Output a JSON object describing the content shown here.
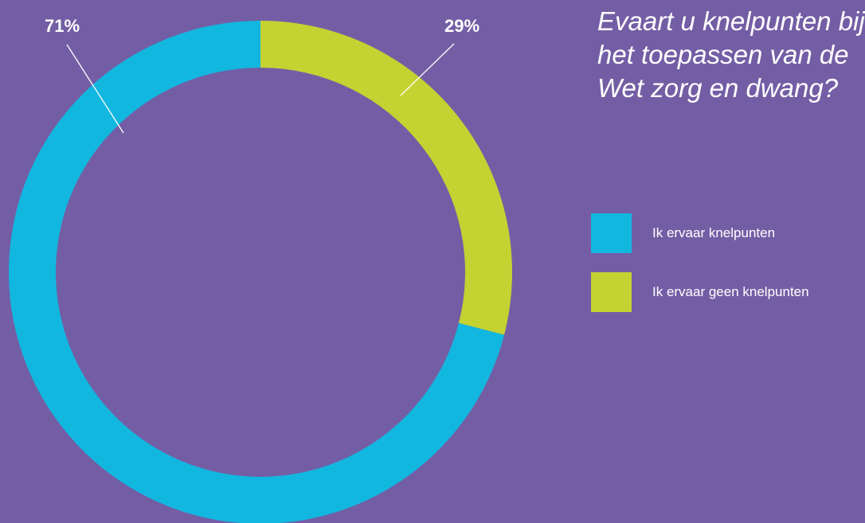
{
  "chart_data": {
    "type": "pie",
    "title": "Evaart u knelpunten bij het toepassen van de Wet zorg en dwang?",
    "title_lines": [
      "Evaart u knelpunten bij",
      "het toepassen van de",
      "Wet zorg en dwang?"
    ],
    "categories": [
      "Ik ervaar knelpunten",
      "Ik ervaar geen knelpunten"
    ],
    "values": [
      71,
      29
    ],
    "data_labels": [
      "71%",
      "29%"
    ],
    "colors": [
      "#12b7e0",
      "#c4d232"
    ],
    "donut": true,
    "legend_position": "right",
    "start_angle": "top, clockwise, second slice first"
  }
}
